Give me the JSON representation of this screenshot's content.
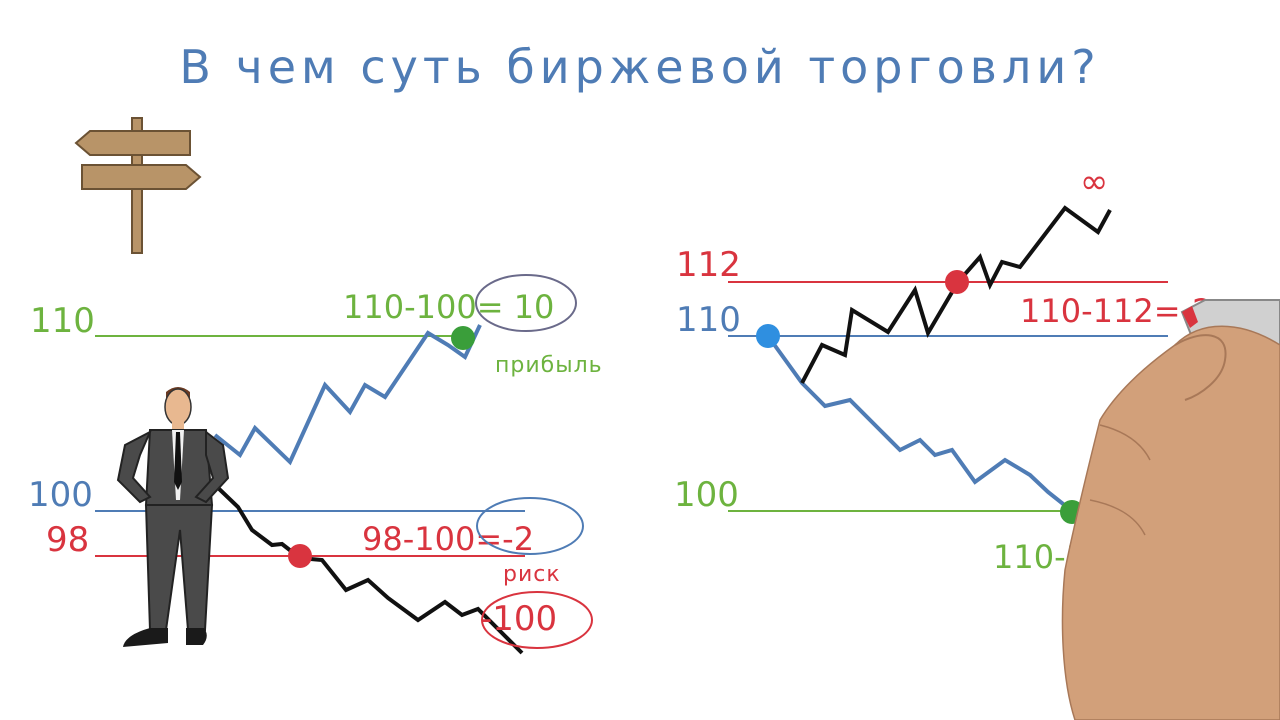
{
  "title": "В чем суть биржевой торговли?",
  "colors": {
    "green": "#6db33f",
    "blue": "#4f7cb5",
    "red": "#d9343f",
    "black": "#111111",
    "wood": "#b89468",
    "skin": "#e8b890",
    "hand": "#d2a07a"
  },
  "left": {
    "level_high": "110",
    "level_entry": "100",
    "level_stop": "98",
    "profit_formula": "110-100= 10",
    "profit_label": "прибыль",
    "loss_formula": "98-100=-2",
    "risk_label": "риск",
    "big_loss": "-100"
  },
  "right": {
    "level_stop": "112",
    "level_entry": "110",
    "level_target": "100",
    "loss_formula": "110-112=-2",
    "profit_formula_partial": "110-1",
    "infinity": "∞"
  }
}
